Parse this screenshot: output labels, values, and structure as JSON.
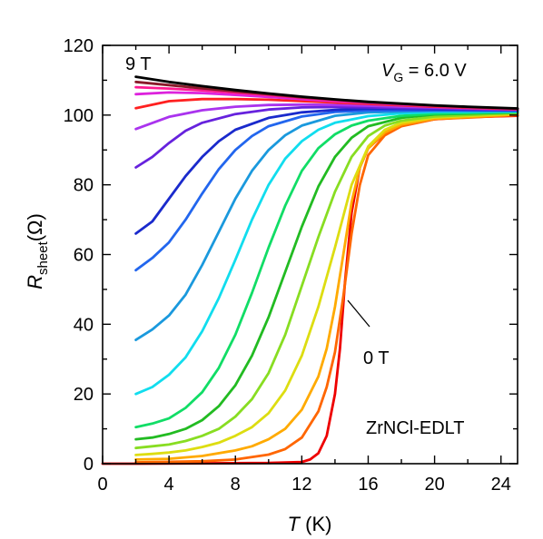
{
  "chart_data": {
    "type": "line",
    "xlabel": {
      "main": "T",
      "unit": " (K)"
    },
    "ylabel": {
      "main": "R",
      "sub": "sheet",
      "unit": "(Ω)"
    },
    "xlim": [
      0,
      25
    ],
    "ylim": [
      0,
      120
    ],
    "xticks": [
      0,
      4,
      8,
      12,
      16,
      20,
      24
    ],
    "yticks": [
      0,
      20,
      40,
      60,
      80,
      100,
      120
    ],
    "grid": false,
    "annotations": {
      "field_top": "9 T",
      "field_bottom": "0 T",
      "gate_var": "V",
      "gate_sub": "G",
      "gate_value": " = 6.0 V",
      "device": "ZrNCl-EDLT"
    },
    "series": [
      {
        "color": "#000000",
        "values": [
          [
            2,
            111
          ],
          [
            4,
            109.5
          ],
          [
            6,
            108.3
          ],
          [
            8,
            107.2
          ],
          [
            10,
            106.2
          ],
          [
            12,
            105.3
          ],
          [
            14,
            104.5
          ],
          [
            16,
            103.8
          ],
          [
            18,
            103.3
          ],
          [
            20,
            102.8
          ],
          [
            22,
            102.4
          ],
          [
            25,
            101.9
          ]
        ]
      },
      {
        "color": "#8a1a2a",
        "values": [
          [
            2,
            109.5
          ],
          [
            4,
            108.6
          ],
          [
            6,
            107.7
          ],
          [
            8,
            106.8
          ],
          [
            10,
            106
          ],
          [
            12,
            105.1
          ],
          [
            14,
            104.4
          ],
          [
            16,
            103.7
          ],
          [
            18,
            103.2
          ],
          [
            20,
            102.7
          ],
          [
            22,
            102.3
          ],
          [
            25,
            101.8
          ]
        ]
      },
      {
        "color": "#ff1a90",
        "values": [
          [
            2,
            108
          ],
          [
            4,
            107.6
          ],
          [
            6,
            107.1
          ],
          [
            8,
            106.4
          ],
          [
            10,
            105.7
          ],
          [
            12,
            104.9
          ],
          [
            14,
            104.2
          ],
          [
            16,
            103.6
          ],
          [
            18,
            103.1
          ],
          [
            20,
            102.6
          ],
          [
            22,
            102.2
          ],
          [
            25,
            101.8
          ]
        ]
      },
      {
        "color": "#dd22dd",
        "values": [
          [
            2,
            106
          ],
          [
            4,
            106.5
          ],
          [
            6,
            106.3
          ],
          [
            8,
            105.8
          ],
          [
            10,
            105.2
          ],
          [
            12,
            104.6
          ],
          [
            14,
            104
          ],
          [
            16,
            103.5
          ],
          [
            18,
            103
          ],
          [
            20,
            102.6
          ],
          [
            22,
            102.2
          ],
          [
            25,
            101.8
          ]
        ]
      },
      {
        "color": "#ff2020",
        "values": [
          [
            2,
            102
          ],
          [
            4,
            104
          ],
          [
            6,
            104.6
          ],
          [
            8,
            104.6
          ],
          [
            10,
            104.4
          ],
          [
            12,
            104
          ],
          [
            14,
            103.6
          ],
          [
            16,
            103.2
          ],
          [
            18,
            102.8
          ],
          [
            20,
            102.4
          ],
          [
            22,
            102.1
          ],
          [
            25,
            101.7
          ]
        ]
      },
      {
        "color": "#aa33ee",
        "values": [
          [
            2,
            96
          ],
          [
            4,
            99.5
          ],
          [
            6,
            101.4
          ],
          [
            8,
            102.4
          ],
          [
            10,
            102.9
          ],
          [
            12,
            103
          ],
          [
            14,
            102.9
          ],
          [
            16,
            102.7
          ],
          [
            18,
            102.4
          ],
          [
            20,
            102.2
          ],
          [
            22,
            101.9
          ],
          [
            25,
            101.6
          ]
        ]
      },
      {
        "color": "#6622dd",
        "values": [
          [
            2,
            85
          ],
          [
            3,
            88
          ],
          [
            4,
            92
          ],
          [
            5,
            95.5
          ],
          [
            6,
            97.8
          ],
          [
            8,
            100.3
          ],
          [
            10,
            101.6
          ],
          [
            12,
            102.2
          ],
          [
            14,
            102.3
          ],
          [
            16,
            102.2
          ],
          [
            18,
            102
          ],
          [
            20,
            101.9
          ],
          [
            22,
            101.7
          ],
          [
            25,
            101.5
          ]
        ]
      },
      {
        "color": "#1a2acc",
        "values": [
          [
            2,
            66
          ],
          [
            3,
            69.5
          ],
          [
            4,
            76
          ],
          [
            5,
            82.5
          ],
          [
            6,
            88
          ],
          [
            7,
            92.5
          ],
          [
            8,
            95.8
          ],
          [
            10,
            99.2
          ],
          [
            12,
            100.8
          ],
          [
            14,
            101.5
          ],
          [
            16,
            101.8
          ],
          [
            20,
            101.7
          ],
          [
            25,
            101.4
          ]
        ]
      },
      {
        "color": "#2266ee",
        "values": [
          [
            2,
            55.5
          ],
          [
            3,
            59
          ],
          [
            4,
            63.5
          ],
          [
            5,
            70
          ],
          [
            6,
            77.5
          ],
          [
            7,
            84.5
          ],
          [
            8,
            90
          ],
          [
            9,
            94
          ],
          [
            10,
            96.8
          ],
          [
            12,
            99.6
          ],
          [
            14,
            100.9
          ],
          [
            16,
            101.3
          ],
          [
            20,
            101.4
          ],
          [
            25,
            101.3
          ]
        ]
      },
      {
        "color": "#1a99dd",
        "values": [
          [
            2,
            35.5
          ],
          [
            3,
            38.5
          ],
          [
            4,
            42.5
          ],
          [
            5,
            48.5
          ],
          [
            6,
            57
          ],
          [
            7,
            66.5
          ],
          [
            8,
            76
          ],
          [
            9,
            84
          ],
          [
            10,
            90
          ],
          [
            11,
            94.2
          ],
          [
            12,
            97
          ],
          [
            14,
            99.8
          ],
          [
            16,
            100.8
          ],
          [
            20,
            101.2
          ],
          [
            25,
            101.2
          ]
        ]
      },
      {
        "color": "#11ddee",
        "values": [
          [
            2,
            20
          ],
          [
            3,
            22
          ],
          [
            4,
            25.5
          ],
          [
            5,
            30.5
          ],
          [
            6,
            38
          ],
          [
            7,
            47.5
          ],
          [
            8,
            58.5
          ],
          [
            9,
            70
          ],
          [
            10,
            80
          ],
          [
            11,
            87.5
          ],
          [
            12,
            92.5
          ],
          [
            13,
            95.8
          ],
          [
            14,
            97.8
          ],
          [
            16,
            99.7
          ],
          [
            18,
            100.5
          ],
          [
            20,
            100.9
          ],
          [
            25,
            101
          ]
        ]
      },
      {
        "color": "#11dd66",
        "values": [
          [
            2,
            10.5
          ],
          [
            3,
            11.5
          ],
          [
            4,
            13
          ],
          [
            5,
            16
          ],
          [
            6,
            20.5
          ],
          [
            7,
            27.5
          ],
          [
            8,
            37
          ],
          [
            9,
            49
          ],
          [
            10,
            62
          ],
          [
            11,
            74
          ],
          [
            12,
            84
          ],
          [
            13,
            90.5
          ],
          [
            14,
            94.5
          ],
          [
            15,
            97
          ],
          [
            16,
            98.4
          ],
          [
            18,
            99.8
          ],
          [
            20,
            100.4
          ],
          [
            25,
            100.9
          ]
        ]
      },
      {
        "color": "#22bb22",
        "values": [
          [
            2,
            7
          ],
          [
            3,
            7.5
          ],
          [
            4,
            8.5
          ],
          [
            5,
            10
          ],
          [
            6,
            12.5
          ],
          [
            7,
            16.5
          ],
          [
            8,
            22.5
          ],
          [
            9,
            31
          ],
          [
            10,
            42
          ],
          [
            11,
            55
          ],
          [
            12,
            68
          ],
          [
            13,
            79.5
          ],
          [
            14,
            88
          ],
          [
            15,
            93.5
          ],
          [
            16,
            96.8
          ],
          [
            18,
            99.2
          ],
          [
            20,
            100.2
          ],
          [
            25,
            100.8
          ]
        ]
      },
      {
        "color": "#88dd22",
        "values": [
          [
            2,
            4.5
          ],
          [
            3,
            5
          ],
          [
            4,
            5.5
          ],
          [
            5,
            6.5
          ],
          [
            6,
            8
          ],
          [
            7,
            10
          ],
          [
            8,
            13.5
          ],
          [
            9,
            18.5
          ],
          [
            10,
            26
          ],
          [
            11,
            37
          ],
          [
            12,
            51
          ],
          [
            13,
            65
          ],
          [
            14,
            78
          ],
          [
            15,
            88
          ],
          [
            16,
            94
          ],
          [
            17,
            97
          ],
          [
            18,
            98.4
          ],
          [
            20,
            99.6
          ],
          [
            25,
            100.6
          ]
        ]
      },
      {
        "color": "#dddd11",
        "values": [
          [
            2,
            2.5
          ],
          [
            3,
            2.8
          ],
          [
            4,
            3.2
          ],
          [
            5,
            3.8
          ],
          [
            6,
            4.8
          ],
          [
            7,
            6
          ],
          [
            8,
            8
          ],
          [
            9,
            10.5
          ],
          [
            10,
            14.5
          ],
          [
            11,
            21
          ],
          [
            12,
            31
          ],
          [
            13,
            45
          ],
          [
            14,
            62
          ],
          [
            14.5,
            71
          ],
          [
            15,
            80
          ],
          [
            16,
            91
          ],
          [
            17,
            95.8
          ],
          [
            18,
            97.8
          ],
          [
            20,
            99.3
          ],
          [
            25,
            100.4
          ]
        ]
      },
      {
        "color": "#ffaa00",
        "values": [
          [
            2,
            1.2
          ],
          [
            4,
            1.4
          ],
          [
            6,
            2.2
          ],
          [
            8,
            3.8
          ],
          [
            9,
            5
          ],
          [
            10,
            7
          ],
          [
            11,
            10
          ],
          [
            12,
            15.5
          ],
          [
            13,
            25
          ],
          [
            13.5,
            33
          ],
          [
            14,
            45
          ],
          [
            14.5,
            60
          ],
          [
            15,
            75
          ],
          [
            15.5,
            85
          ],
          [
            16,
            90.5
          ],
          [
            17,
            95
          ],
          [
            18,
            97.3
          ],
          [
            20,
            99
          ],
          [
            25,
            100.2
          ]
        ]
      },
      {
        "color": "#ff6600",
        "values": [
          [
            2,
            0.4
          ],
          [
            6,
            0.7
          ],
          [
            8,
            1.2
          ],
          [
            10,
            2.6
          ],
          [
            11,
            4.2
          ],
          [
            12,
            7.5
          ],
          [
            13,
            15
          ],
          [
            13.5,
            22
          ],
          [
            14,
            32
          ],
          [
            14.5,
            48
          ],
          [
            15,
            66
          ],
          [
            15.5,
            80
          ],
          [
            16,
            88.5
          ],
          [
            17,
            94.2
          ],
          [
            18,
            96.8
          ],
          [
            20,
            98.8
          ],
          [
            25,
            100
          ]
        ]
      },
      {
        "color": "#ee0000",
        "values": [
          [
            0,
            0
          ],
          [
            2,
            0
          ],
          [
            10,
            0.2
          ],
          [
            12,
            0.5
          ],
          [
            12.5,
            1.2
          ],
          [
            13,
            3
          ],
          [
            13.5,
            8
          ],
          [
            14,
            20
          ],
          [
            14.3,
            33
          ],
          [
            14.6,
            52
          ],
          [
            15,
            72
          ],
          [
            15.5,
            85
          ],
          [
            16,
            90.5
          ],
          [
            17,
            94.8
          ],
          [
            18,
            97
          ],
          [
            20,
            98.8
          ],
          [
            22,
            99.4
          ],
          [
            25,
            99.8
          ]
        ]
      }
    ]
  }
}
